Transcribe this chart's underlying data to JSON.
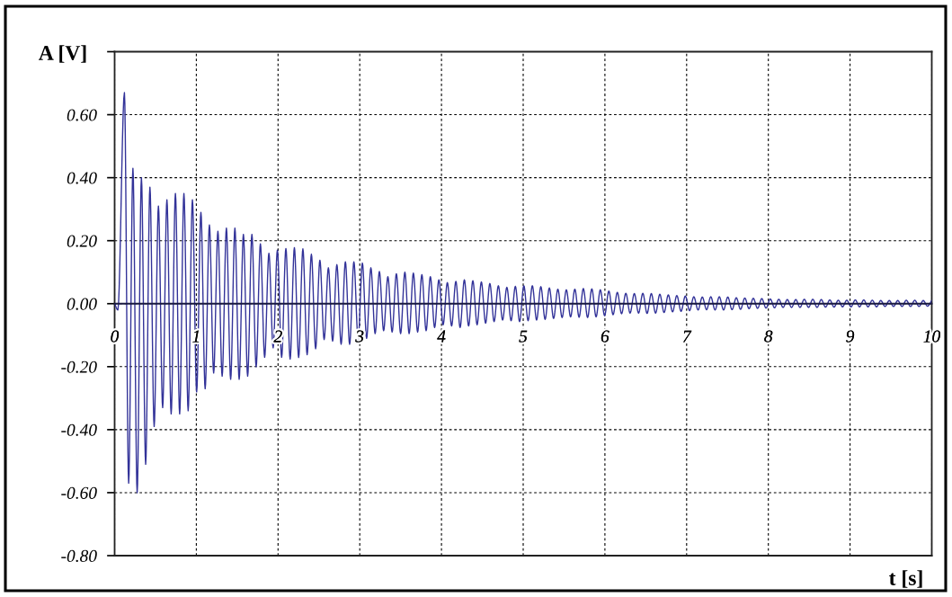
{
  "chart_data": {
    "type": "line",
    "xlabel": "t [s]",
    "ylabel": "A [V]",
    "x": [
      0,
      0.04,
      0.12,
      0.172,
      0.224,
      0.276,
      0.328,
      0.38,
      0.432,
      0.484,
      0.536,
      0.588,
      0.64,
      0.692,
      0.744,
      0.796,
      0.848,
      0.9,
      0.952,
      1.004,
      1.056,
      1.108,
      1.16,
      1.212,
      1.264,
      1.316,
      1.368,
      1.42,
      1.472,
      1.524,
      1.576,
      1.628,
      1.68,
      1.732,
      1.784,
      1.836,
      1.888,
      1.94,
      1.992,
      2.044,
      2.096,
      2.148,
      2.2,
      2.252,
      2.304,
      2.356,
      2.408,
      2.46,
      2.512,
      2.564,
      2.616,
      2.668,
      2.72,
      2.772,
      2.824,
      2.876,
      2.928,
      2.98,
      3.032,
      3.084,
      3.136,
      3.188,
      3.24,
      3.292,
      3.344,
      3.396,
      3.448,
      3.5,
      3.552,
      3.604,
      3.656,
      3.708,
      3.76,
      3.812,
      3.864,
      3.916,
      3.968,
      4.02,
      4.072,
      4.124,
      4.176,
      4.228,
      4.28,
      4.332,
      4.384,
      4.436,
      4.488,
      4.54,
      4.592,
      4.644,
      4.696,
      4.748,
      4.8,
      4.852,
      4.904,
      4.956,
      5.008,
      5.06,
      5.112,
      5.164,
      5.216,
      5.268,
      5.32,
      5.372,
      5.424,
      5.476,
      5.528,
      5.58,
      5.632,
      5.684,
      5.736,
      5.788,
      5.84,
      5.892,
      5.944,
      5.996,
      6.048,
      6.1,
      6.152,
      6.204,
      6.256,
      6.308,
      6.36,
      6.412,
      6.464,
      6.516,
      6.568,
      6.62,
      6.672,
      6.724,
      6.776,
      6.828,
      6.88,
      6.932,
      6.984,
      7.036,
      7.088,
      7.14,
      7.192,
      7.244,
      7.296,
      7.348,
      7.4,
      7.452,
      7.504,
      7.556,
      7.608,
      7.66,
      7.712,
      7.764,
      7.816,
      7.868,
      7.92,
      7.972,
      8.024,
      8.076,
      8.128,
      8.18,
      8.232,
      8.284,
      8.336,
      8.388,
      8.44,
      8.492,
      8.544,
      8.596,
      8.648,
      8.7,
      8.752,
      8.804,
      8.856,
      8.908,
      8.96,
      9.012,
      9.064,
      9.116,
      9.168,
      9.22,
      9.272,
      9.324,
      9.376,
      9.428,
      9.48,
      9.532,
      9.584,
      9.636,
      9.688,
      9.74,
      9.792,
      9.844,
      9.896,
      9.948,
      10
    ],
    "series": [
      {
        "color": "#333399",
        "values": [
          0,
          -0.02,
          0.67,
          -0.57,
          0.43,
          -0.6,
          0.4,
          -0.51,
          0.37,
          -0.39,
          0.31,
          -0.33,
          0.33,
          -0.35,
          0.35,
          -0.35,
          0.35,
          -0.34,
          0.33,
          -0.28,
          0.29,
          -0.27,
          0.25,
          -0.22,
          0.23,
          -0.23,
          0.24,
          -0.24,
          0.24,
          -0.24,
          0.22,
          -0.23,
          0.22,
          -0.2,
          0.19,
          -0.17,
          0.16,
          -0.14,
          0.17,
          -0.17,
          0.175,
          -0.176,
          0.178,
          -0.171,
          0.174,
          -0.162,
          0.157,
          -0.143,
          0.138,
          -0.114,
          0.114,
          -0.119,
          0.124,
          -0.129,
          0.133,
          -0.129,
          0.133,
          -0.114,
          0.129,
          -0.11,
          0.114,
          -0.095,
          0.102,
          -0.086,
          0.086,
          -0.09,
          0.095,
          -0.095,
          0.1,
          -0.095,
          0.097,
          -0.09,
          0.092,
          -0.086,
          0.086,
          -0.076,
          0.076,
          -0.067,
          0.067,
          -0.071,
          0.071,
          -0.076,
          0.076,
          -0.071,
          0.073,
          -0.067,
          0.069,
          -0.062,
          0.064,
          -0.057,
          0.057,
          -0.052,
          0.052,
          -0.054,
          0.055,
          -0.057,
          0.057,
          -0.054,
          0.057,
          -0.052,
          0.054,
          -0.05,
          0.05,
          -0.047,
          0.046,
          -0.044,
          0.044,
          -0.042,
          0.046,
          -0.043,
          0.048,
          -0.044,
          0.047,
          -0.042,
          0.044,
          -0.038,
          0.04,
          -0.035,
          0.036,
          -0.032,
          0.033,
          -0.03,
          0.032,
          -0.03,
          0.033,
          -0.031,
          0.032,
          -0.03,
          0.03,
          -0.028,
          0.028,
          -0.026,
          0.026,
          -0.024,
          0.024,
          -0.022,
          0.022,
          -0.02,
          0.021,
          -0.019,
          0.022,
          -0.02,
          0.022,
          -0.02,
          0.021,
          -0.019,
          0.019,
          -0.018,
          0.018,
          -0.016,
          0.017,
          -0.015,
          0.016,
          -0.014,
          0.015,
          -0.013,
          0.014,
          -0.012,
          0.013,
          -0.012,
          0.013,
          -0.012,
          0.014,
          -0.012,
          0.014,
          -0.012,
          0.013,
          -0.011,
          0.012,
          -0.011,
          0.011,
          -0.01,
          0.011,
          -0.01,
          0.012,
          -0.01,
          0.012,
          -0.01,
          0.011,
          -0.01,
          0.01,
          -0.009,
          0.01,
          -0.009,
          0.01,
          -0.009,
          0.011,
          -0.009,
          0.011,
          -0.009,
          0.01,
          -0.008,
          0.01
        ]
      }
    ],
    "xlim": [
      0,
      10
    ],
    "ylim": [
      -0.8,
      0.8
    ],
    "xticks": [
      0,
      1,
      2,
      3,
      4,
      5,
      6,
      7,
      8,
      9,
      10
    ],
    "yticks": [
      {
        "value": -0.8,
        "label": "-0.80"
      },
      {
        "value": -0.6,
        "label": "-0.60"
      },
      {
        "value": -0.4,
        "label": "-0.40"
      },
      {
        "value": -0.2,
        "label": "-0.20"
      },
      {
        "value": 0,
        "label": "0.00"
      },
      {
        "value": 0.2,
        "label": "0.20"
      },
      {
        "value": 0.4,
        "label": "0.40"
      },
      {
        "value": 0.6,
        "label": "0.60"
      },
      {
        "value": 0.8,
        "label": null
      }
    ],
    "grid": true
  }
}
